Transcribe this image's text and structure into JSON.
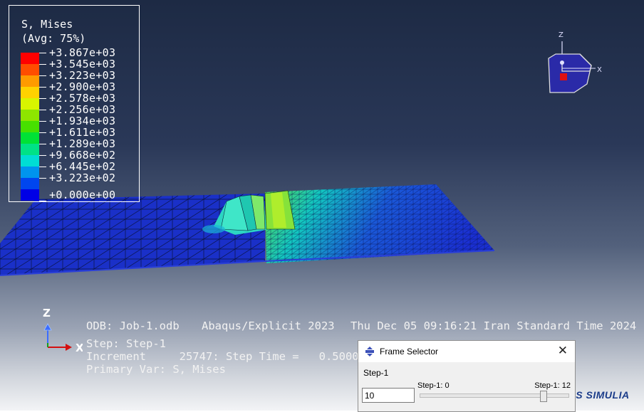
{
  "legend": {
    "title_line1": "S, Mises",
    "title_line2": "(Avg: 75%)",
    "values": [
      "+3.867e+03",
      "+3.545e+03",
      "+3.223e+03",
      "+2.900e+03",
      "+2.578e+03",
      "+2.256e+03",
      "+1.934e+03",
      "+1.611e+03",
      "+1.289e+03",
      "+9.668e+02",
      "+6.445e+02",
      "+3.223e+02",
      "+0.000e+00"
    ],
    "colors": [
      "#ff0000",
      "#ff4d00",
      "#ff9a00",
      "#ffd200",
      "#d8f500",
      "#8ee500",
      "#47e000",
      "#00e236",
      "#00e286",
      "#00ddd4",
      "#0094ee",
      "#0046ee",
      "#0000e6"
    ]
  },
  "info": {
    "odb": "ODB: Job-1.odb",
    "solver": "Abaqus/Explicit 2023",
    "datetime": "Thu Dec 05 09:16:21 Iran Standard Time 2024",
    "step": "Step: Step-1",
    "increment": "Increment     25747: Step Time =   0.5000",
    "primary_var": "Primary Var: S, Mises"
  },
  "triad": {
    "z": "Z",
    "x": "X"
  },
  "viewcube": {
    "z": "Z",
    "x": "X"
  },
  "frame_selector": {
    "title": "Frame Selector",
    "close": "✕",
    "step_label": "Step-1",
    "frame_value": "10",
    "slider_min_label": "Step-1: 0",
    "slider_max_label": "Step-1: 12",
    "slider_fraction": 0.833
  },
  "brand": "SIMULIA"
}
